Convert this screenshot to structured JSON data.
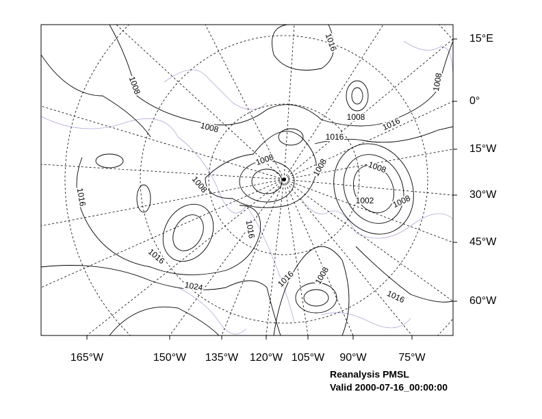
{
  "map": {
    "x_labels": [
      "165°W",
      "150°W",
      "135°W",
      "120°W",
      "105°W",
      "90°W",
      "75°W"
    ],
    "y_labels": [
      "15°E",
      "0°",
      "15°W",
      "30°W",
      "45°W",
      "60°W"
    ],
    "contour_labels": [
      1016,
      1008,
      1008,
      1008,
      1008,
      1016,
      1016,
      1008,
      1008,
      1008,
      1008,
      1016,
      1002,
      1008,
      1016,
      1016,
      1024,
      1016,
      1008,
      1016
    ],
    "caption": [
      "Reanalysis PMSL",
      "Valid 2000-07-16_00:00:00"
    ]
  }
}
